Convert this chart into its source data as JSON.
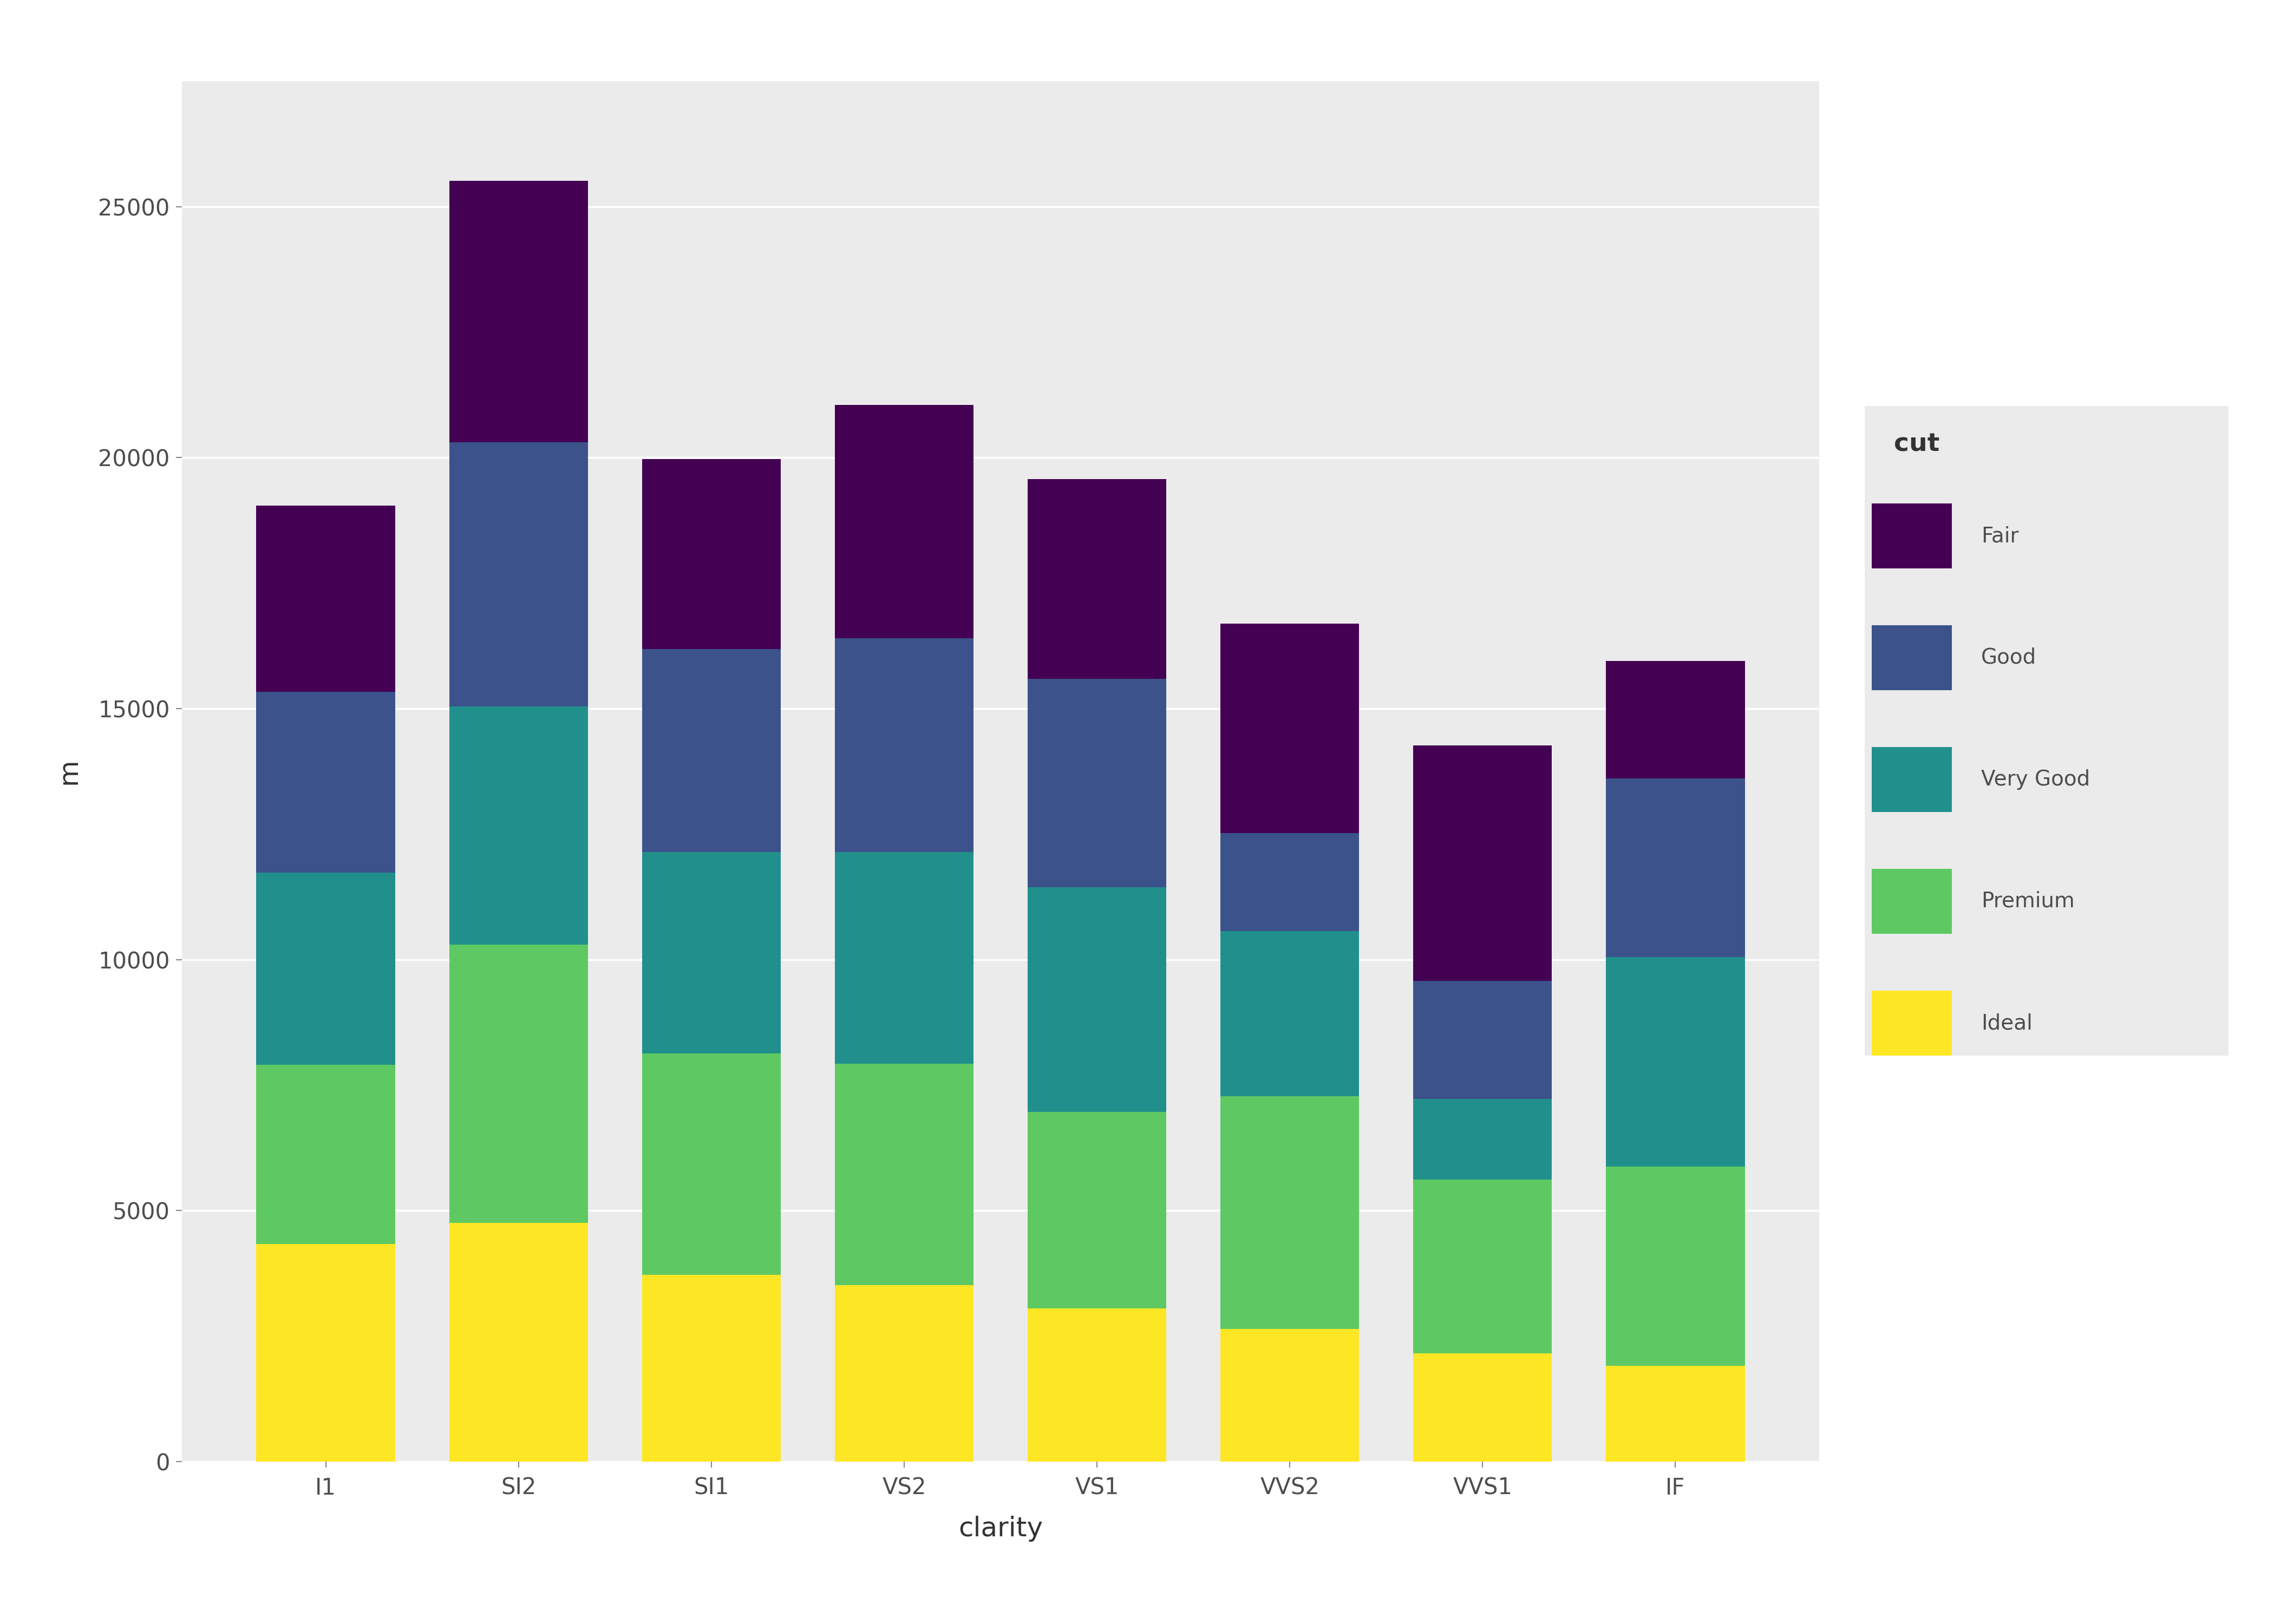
{
  "categories": [
    "I1",
    "SI2",
    "SI1",
    "VS2",
    "VS1",
    "VVS2",
    "VVS1",
    "IF"
  ],
  "cuts": [
    "Ideal",
    "Premium",
    "Very Good",
    "Good",
    "Fair"
  ],
  "colors": [
    "#FDE725",
    "#5EC962",
    "#21908C",
    "#3B528B",
    "#440154"
  ],
  "values": {
    "Ideal": [
      4336,
      4757,
      3722,
      3511,
      3057,
      2637,
      2159,
      1912
    ],
    "Premium": [
      3574,
      5547,
      4412,
      4416,
      3913,
      4647,
      3460,
      3963
    ],
    "Very Good": [
      3826,
      4741,
      4005,
      4215,
      4468,
      3289,
      1609,
      4175
    ],
    "Good": [
      3603,
      5257,
      4049,
      4262,
      4158,
      1946,
      2350,
      3556
    ],
    "Fair": [
      3703,
      5210,
      3784,
      4643,
      3977,
      4175,
      4685,
      2343
    ]
  },
  "ylabel": "m",
  "xlabel": "clarity",
  "legend_title": "cut",
  "ylim": [
    0,
    27500
  ],
  "yticks": [
    0,
    5000,
    10000,
    15000,
    20000,
    25000
  ],
  "ytick_labels": [
    "0",
    "5000",
    "10000",
    "15000",
    "20000",
    "25000"
  ],
  "background_color": "#EBEBEB",
  "panel_background": "#EBEBEB",
  "grid_color": "#FFFFFF",
  "bar_width": 0.72,
  "fig_bg": "#FFFFFF"
}
